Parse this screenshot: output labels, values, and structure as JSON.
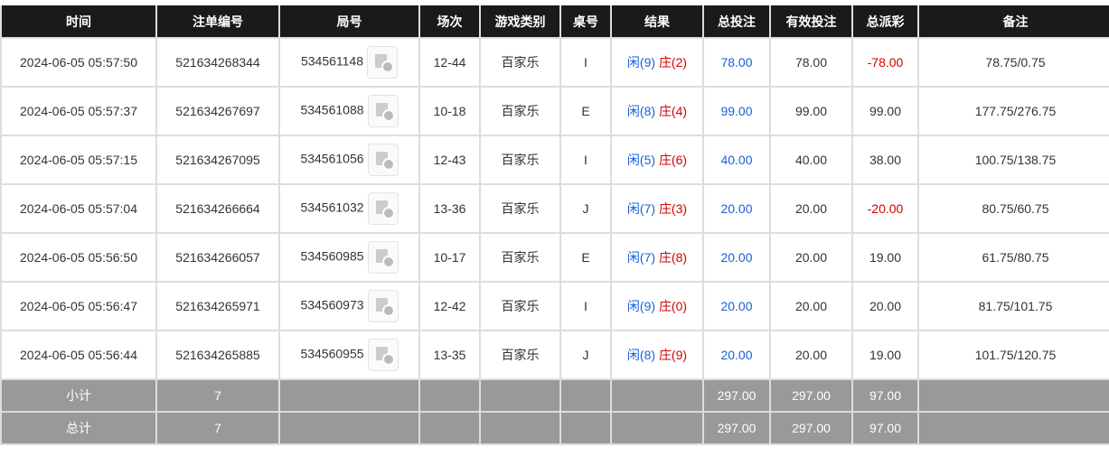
{
  "headers": [
    "时间",
    "注单编号",
    "局号",
    "场次",
    "游戏类别",
    "桌号",
    "结果",
    "总投注",
    "有效投注",
    "总派彩",
    "备注"
  ],
  "rows": [
    {
      "time": "2024-06-05 05:57:50",
      "bet_id": "521634268344",
      "round": "534561148",
      "session": "12-44",
      "game": "百家乐",
      "table": "I",
      "player": "闲(9)",
      "banker": "庄(2)",
      "total_bet": "78.00",
      "valid_bet": "78.00",
      "payout": "-78.00",
      "payout_negative": true,
      "note": "78.75/0.75"
    },
    {
      "time": "2024-06-05 05:57:37",
      "bet_id": "521634267697",
      "round": "534561088",
      "session": "10-18",
      "game": "百家乐",
      "table": "E",
      "player": "闲(8)",
      "banker": "庄(4)",
      "total_bet": "99.00",
      "valid_bet": "99.00",
      "payout": "99.00",
      "payout_negative": false,
      "note": "177.75/276.75"
    },
    {
      "time": "2024-06-05 05:57:15",
      "bet_id": "521634267095",
      "round": "534561056",
      "session": "12-43",
      "game": "百家乐",
      "table": "I",
      "player": "闲(5)",
      "banker": "庄(6)",
      "total_bet": "40.00",
      "valid_bet": "40.00",
      "payout": "38.00",
      "payout_negative": false,
      "note": "100.75/138.75"
    },
    {
      "time": "2024-06-05 05:57:04",
      "bet_id": "521634266664",
      "round": "534561032",
      "session": "13-36",
      "game": "百家乐",
      "table": "J",
      "player": "闲(7)",
      "banker": "庄(3)",
      "total_bet": "20.00",
      "valid_bet": "20.00",
      "payout": "-20.00",
      "payout_negative": true,
      "note": "80.75/60.75"
    },
    {
      "time": "2024-06-05 05:56:50",
      "bet_id": "521634266057",
      "round": "534560985",
      "session": "10-17",
      "game": "百家乐",
      "table": "E",
      "player": "闲(7)",
      "banker": "庄(8)",
      "total_bet": "20.00",
      "valid_bet": "20.00",
      "payout": "19.00",
      "payout_negative": false,
      "note": "61.75/80.75"
    },
    {
      "time": "2024-06-05 05:56:47",
      "bet_id": "521634265971",
      "round": "534560973",
      "session": "12-42",
      "game": "百家乐",
      "table": "I",
      "player": "闲(9)",
      "banker": "庄(0)",
      "total_bet": "20.00",
      "valid_bet": "20.00",
      "payout": "20.00",
      "payout_negative": false,
      "note": "81.75/101.75"
    },
    {
      "time": "2024-06-05 05:56:44",
      "bet_id": "521634265885",
      "round": "534560955",
      "session": "13-35",
      "game": "百家乐",
      "table": "J",
      "player": "闲(8)",
      "banker": "庄(9)",
      "total_bet": "20.00",
      "valid_bet": "20.00",
      "payout": "19.00",
      "payout_negative": false,
      "note": "101.75/120.75"
    }
  ],
  "summary": [
    {
      "label": "小计",
      "count": "7",
      "total_bet": "297.00",
      "valid_bet": "297.00",
      "payout": "97.00"
    },
    {
      "label": "总计",
      "count": "7",
      "total_bet": "297.00",
      "valid_bet": "297.00",
      "payout": "97.00"
    }
  ],
  "colors": {
    "header_bg": "#1a1a1a",
    "summary_bg": "#999999",
    "blue": "#1a5fd6",
    "red": "#d40000"
  },
  "icons": {
    "round_video": "video-replay-icon"
  }
}
